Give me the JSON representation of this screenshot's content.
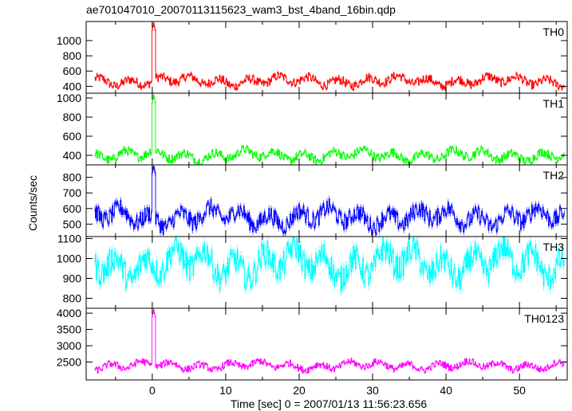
{
  "chart_data": {
    "type": "line",
    "title": "ae701047010_20070113115623_wam3_bst_4band_16bin.qdp",
    "xlabel": "Time [sec] 0 = 2007/01/13 11:56:23.656",
    "ylabel": "Counts/sec",
    "xlim": [
      -9,
      56.5
    ],
    "x_ticks": [
      0,
      10,
      20,
      30,
      40,
      50
    ],
    "grid": false,
    "error_bars": true,
    "panels": [
      {
        "name": "TH0",
        "color": "#ff0000",
        "ylim": [
          310,
          1250
        ],
        "y_ticks": [
          400,
          600,
          800,
          1000
        ],
        "baseline": 470,
        "wave_amp": 45,
        "noise_amp": 55,
        "spike": {
          "x": 0.2,
          "peak": 1230
        }
      },
      {
        "name": "TH1",
        "color": "#00ff00",
        "ylim": [
          300,
          1050
        ],
        "y_ticks": [
          400,
          600,
          800,
          1000
        ],
        "baseline": 400,
        "wave_amp": 40,
        "noise_amp": 45,
        "spike": {
          "x": 0.2,
          "peak": 1030
        }
      },
      {
        "name": "TH2",
        "color": "#0000ff",
        "ylim": [
          420,
          880
        ],
        "y_ticks": [
          500,
          600,
          700,
          800
        ],
        "baseline": 545,
        "wave_amp": 40,
        "noise_amp": 55,
        "spike": {
          "x": 0.2,
          "peak": 870
        }
      },
      {
        "name": "TH3",
        "color": "#00ffff",
        "ylim": [
          750,
          1110
        ],
        "y_ticks": [
          800,
          900,
          1000,
          1100
        ],
        "baseline": 975,
        "wave_amp": 55,
        "noise_amp": 65,
        "spike": null
      },
      {
        "name": "TH0123",
        "color": "#ff00ff",
        "ylim": [
          1950,
          4150
        ],
        "y_ticks": [
          2500,
          3000,
          3500,
          4000
        ],
        "baseline": 2390,
        "wave_amp": 90,
        "noise_amp": 100,
        "spike": {
          "x": 0.2,
          "peak": 4100
        }
      }
    ]
  }
}
